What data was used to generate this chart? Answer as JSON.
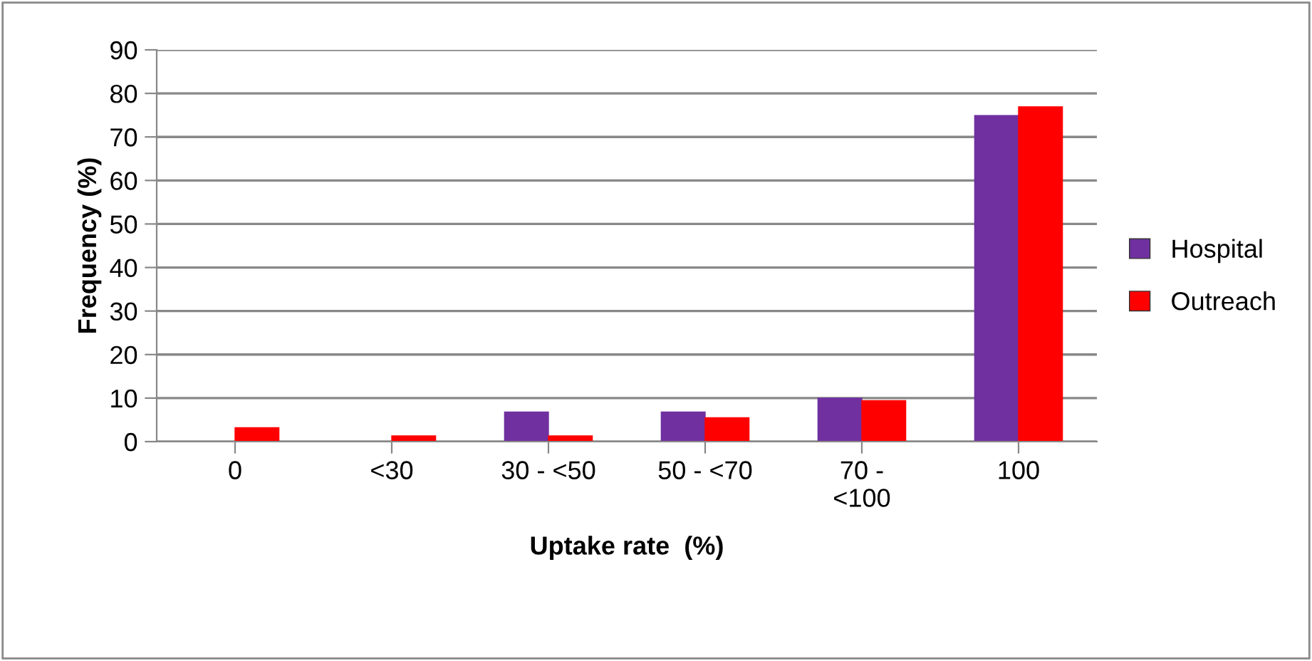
{
  "chart_data": {
    "type": "bar",
    "xlabel": "Uptake rate  (%)",
    "ylabel": "Frequency (%)",
    "categories": [
      "0",
      "<30",
      "30 - <50",
      "50 - <70",
      "70 -\n<100",
      "100"
    ],
    "series": [
      {
        "name": "Hospital",
        "color": "#7030a0",
        "values": [
          0,
          0,
          6.8,
          6.8,
          10.0,
          74.9
        ]
      },
      {
        "name": "Outreach",
        "color": "#ff0000",
        "values": [
          3.2,
          1.3,
          1.3,
          5.5,
          9.4,
          76.9
        ]
      }
    ],
    "ylim": [
      0,
      90
    ],
    "yticks": [
      0,
      10,
      20,
      30,
      40,
      50,
      60,
      70,
      80,
      90
    ],
    "grid": "y",
    "legend": "right"
  }
}
